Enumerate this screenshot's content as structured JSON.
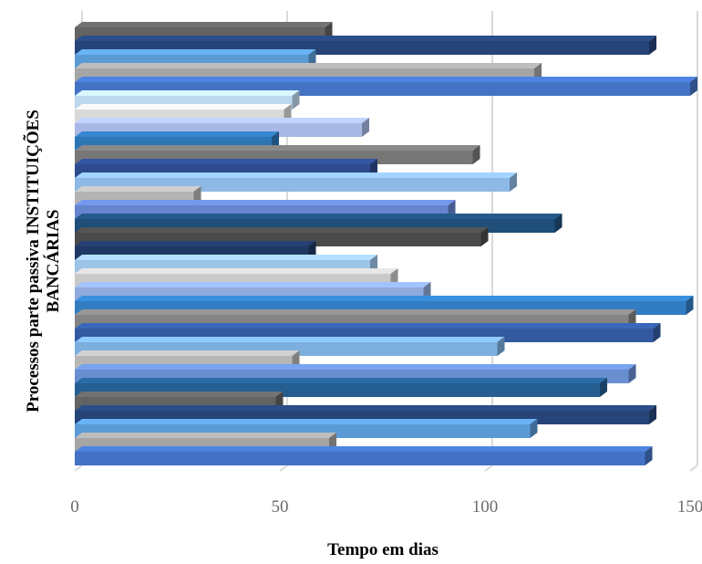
{
  "chart_data": {
    "type": "bar",
    "orientation": "horizontal",
    "style": "3d",
    "xlabel": "Tempo em dias",
    "ylabel_lines": [
      "Processos parte passiva INSTITUIÇÕES",
      "BANCÁRIAS"
    ],
    "xlim": [
      0,
      150
    ],
    "xticks": [
      "0",
      "50",
      "100",
      "150"
    ],
    "grid": true,
    "legend": "none",
    "categories_shown": false,
    "values": [
      139,
      62,
      111,
      140,
      49,
      128,
      135,
      53,
      103,
      141,
      135,
      149,
      85,
      77,
      72,
      57,
      99,
      117,
      91,
      29,
      106,
      72,
      97,
      48,
      70,
      51,
      53,
      150,
      112,
      57,
      140,
      61
    ],
    "colors": [
      "#4472C4",
      "#A5A5A5",
      "#5B9BD5",
      "#264478",
      "#636363",
      "#255E91",
      "#698ED0",
      "#B7B7B7",
      "#7CAFDD",
      "#335AA1",
      "#848484",
      "#327DC2",
      "#8FAADC",
      "#C9C9C9",
      "#9DC3E6",
      "#203864",
      "#4A4A4A",
      "#1F4E79",
      "#6585CF",
      "#B4B4B4",
      "#8EB8E5",
      "#2E4B8E",
      "#777777",
      "#2E75B6",
      "#A9B8E4",
      "#D9D9D9",
      "#BDD7EE",
      "#4472C4",
      "#A5A5A5",
      "#5B9BD5",
      "#264478",
      "#636363"
    ]
  }
}
